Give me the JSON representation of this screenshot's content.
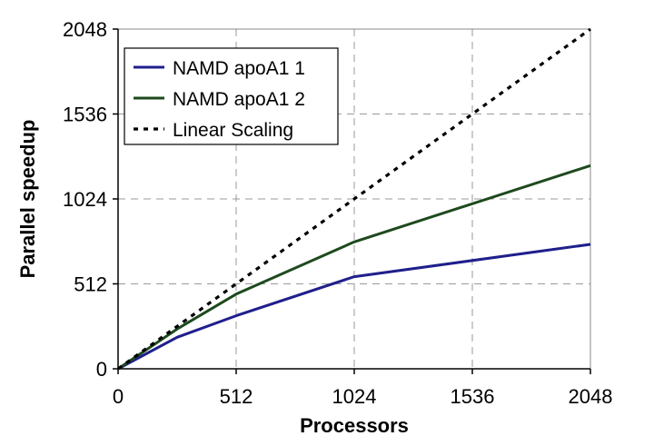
{
  "chart_data": {
    "type": "line",
    "title": "",
    "xlabel": "Processors",
    "ylabel": "Parallel speedup",
    "xlim": [
      0,
      2048
    ],
    "ylim": [
      0,
      2048
    ],
    "xticks": [
      0,
      512,
      1024,
      1536,
      2048
    ],
    "yticks": [
      0,
      512,
      1024,
      1536,
      2048
    ],
    "grid": "dashed",
    "legend": "top-left",
    "series": [
      {
        "name": "NAMD apoA1 1",
        "color": "#1f1f8c",
        "style": "solid",
        "x": [
          0,
          256,
          512,
          1024,
          2048
        ],
        "y": [
          0,
          190,
          320,
          555,
          750
        ]
      },
      {
        "name": "NAMD apoA1 2",
        "color": "#1e4a1e",
        "style": "solid",
        "x": [
          0,
          256,
          512,
          1024,
          2048
        ],
        "y": [
          0,
          240,
          450,
          765,
          1225
        ]
      },
      {
        "name": "Linear Scaling",
        "color": "#000000",
        "style": "dotted",
        "x": [
          0,
          2048
        ],
        "y": [
          0,
          2048
        ]
      }
    ]
  }
}
